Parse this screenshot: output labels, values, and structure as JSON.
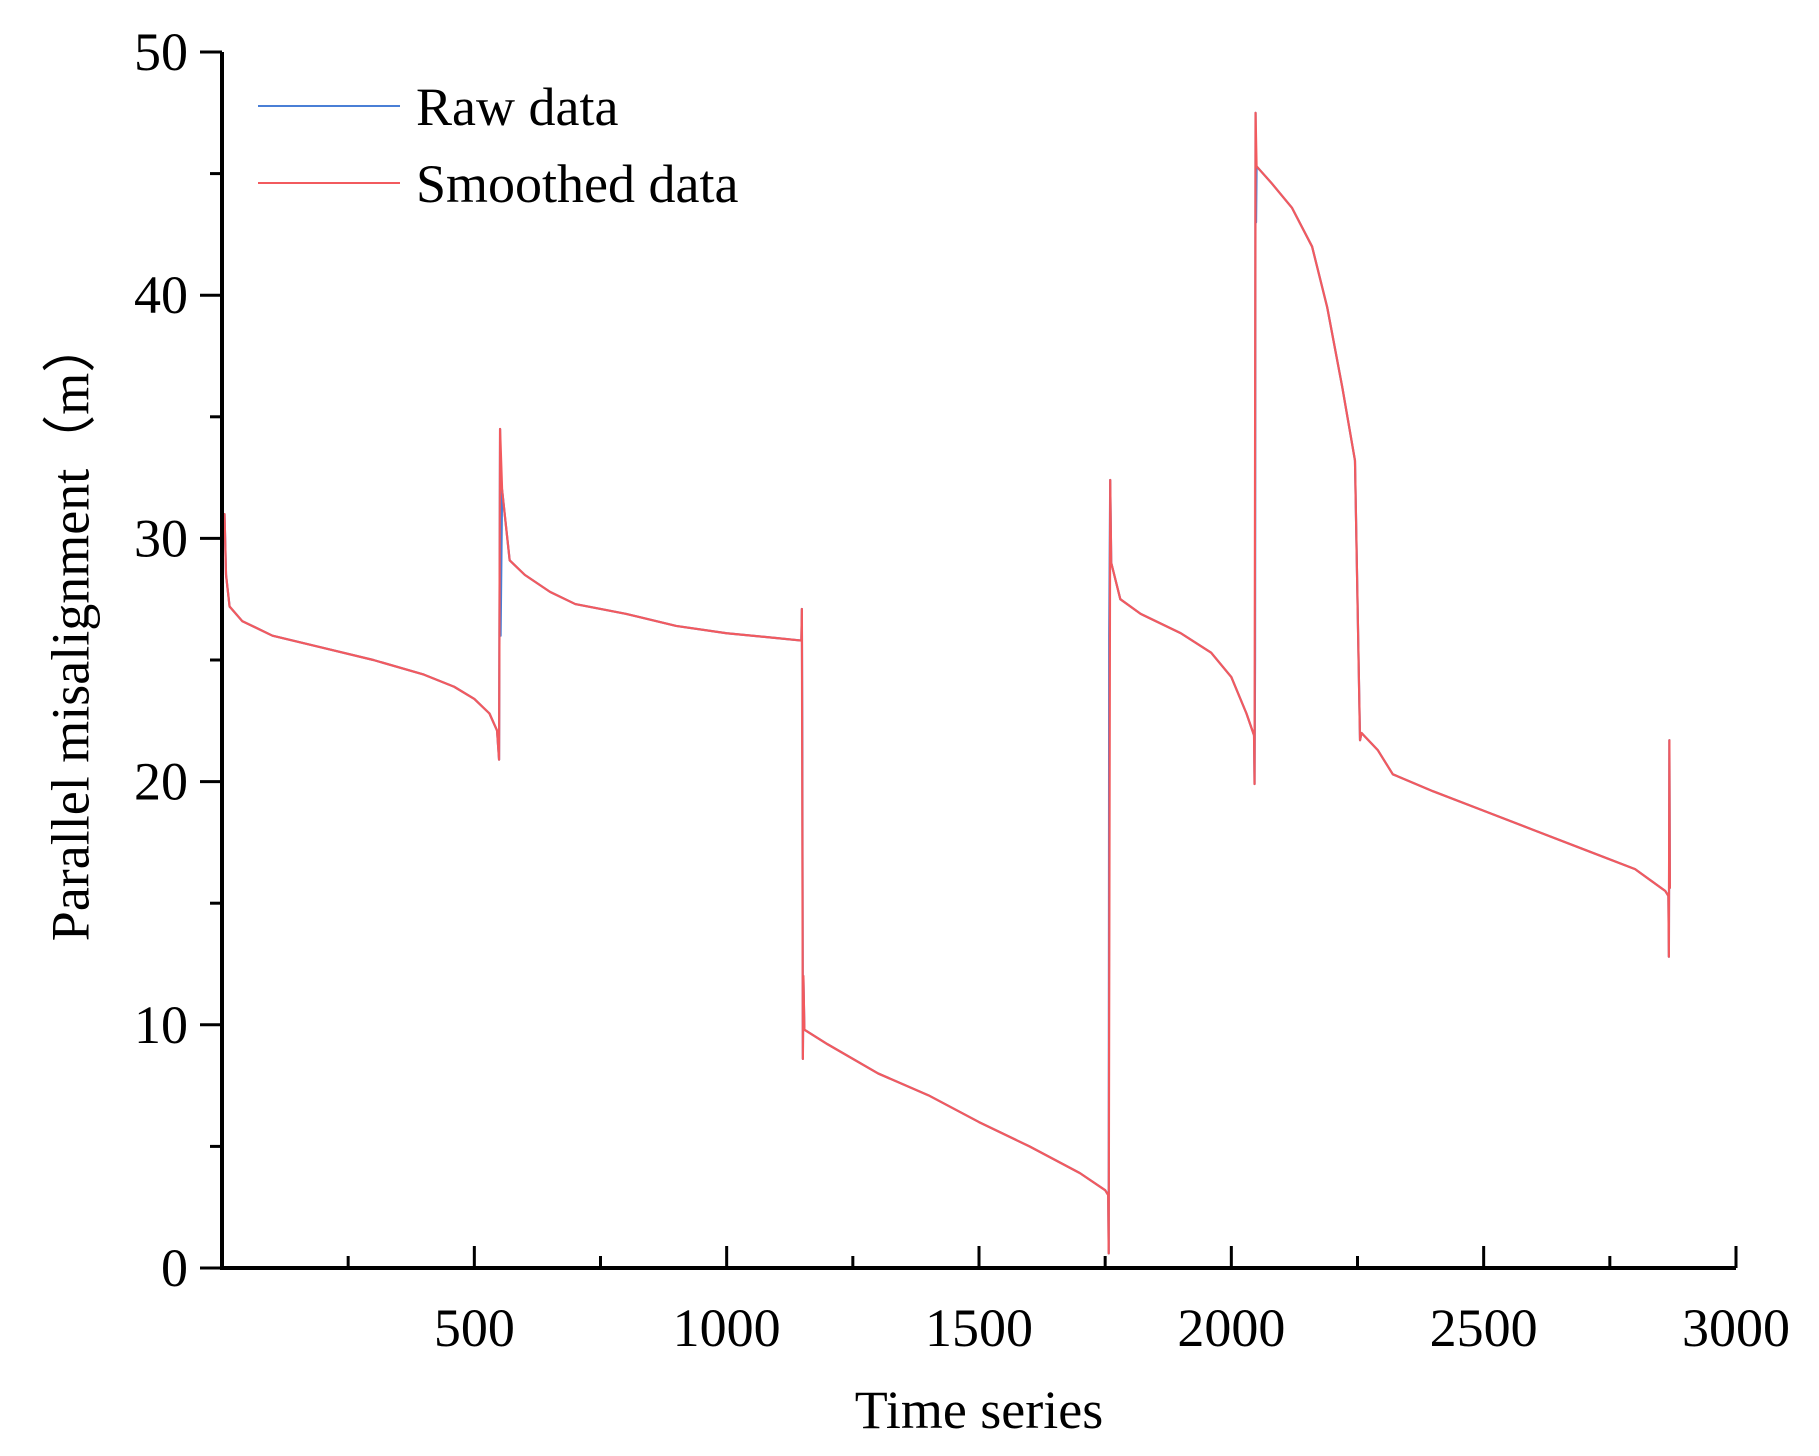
{
  "chart_data": {
    "type": "line",
    "title": "",
    "xlabel": "Time series",
    "ylabel": "Parallel misalignment（m）",
    "xlim": [
      0,
      3000
    ],
    "ylim": [
      0,
      50
    ],
    "x_ticks": [
      500,
      1000,
      1500,
      2000,
      2500,
      3000
    ],
    "x_tick_labels": [
      "500",
      "1000",
      "1500",
      "2000",
      "2500",
      "3000"
    ],
    "x_minor_ticks": [
      250,
      750,
      1250,
      1750,
      2250,
      2750
    ],
    "y_ticks": [
      0,
      10,
      20,
      30,
      40,
      50
    ],
    "y_tick_labels": [
      "0",
      "10",
      "20",
      "30",
      "40",
      "50"
    ],
    "y_minor_ticks": [
      5,
      15,
      25,
      35,
      45
    ],
    "grid": false,
    "legend_position": "top-left",
    "series": [
      {
        "name": "Raw data",
        "color": "#4a7fd6",
        "points": [
          [
            0,
            30.5
          ],
          [
            5,
            31.0
          ],
          [
            8,
            28.5
          ],
          [
            15,
            27.2
          ],
          [
            40,
            26.6
          ],
          [
            100,
            26.0
          ],
          [
            200,
            25.5
          ],
          [
            300,
            25.0
          ],
          [
            400,
            24.4
          ],
          [
            460,
            23.9
          ],
          [
            500,
            23.4
          ],
          [
            530,
            22.8
          ],
          [
            545,
            22.1
          ],
          [
            549,
            20.9
          ],
          [
            551,
            34.5
          ],
          [
            552,
            26.0
          ],
          [
            555,
            32.0
          ],
          [
            570,
            29.1
          ],
          [
            600,
            28.5
          ],
          [
            650,
            27.8
          ],
          [
            700,
            27.3
          ],
          [
            800,
            26.9
          ],
          [
            900,
            26.4
          ],
          [
            1000,
            26.1
          ],
          [
            1100,
            25.9
          ],
          [
            1148,
            25.8
          ],
          [
            1149,
            27.1
          ],
          [
            1150,
            21.0
          ],
          [
            1151,
            8.6
          ],
          [
            1152,
            12.0
          ],
          [
            1154,
            9.8
          ],
          [
            1200,
            9.2
          ],
          [
            1300,
            8.0
          ],
          [
            1400,
            7.1
          ],
          [
            1500,
            6.0
          ],
          [
            1600,
            5.0
          ],
          [
            1700,
            3.9
          ],
          [
            1750,
            3.2
          ],
          [
            1756,
            3.0
          ],
          [
            1757,
            0.6
          ],
          [
            1758,
            26.0
          ],
          [
            1760,
            32.4
          ],
          [
            1762,
            29.0
          ],
          [
            1780,
            27.5
          ],
          [
            1820,
            26.9
          ],
          [
            1900,
            26.1
          ],
          [
            1960,
            25.3
          ],
          [
            2000,
            24.3
          ],
          [
            2030,
            22.8
          ],
          [
            2045,
            21.9
          ],
          [
            2046,
            19.9
          ],
          [
            2047,
            25.0
          ],
          [
            2048,
            47.5
          ],
          [
            2049,
            43.0
          ],
          [
            2050,
            45.3
          ],
          [
            2080,
            44.6
          ],
          [
            2120,
            43.6
          ],
          [
            2160,
            42.0
          ],
          [
            2190,
            39.5
          ],
          [
            2220,
            36.2
          ],
          [
            2245,
            33.2
          ],
          [
            2255,
            21.7
          ],
          [
            2258,
            22.0
          ],
          [
            2290,
            21.3
          ],
          [
            2320,
            20.3
          ],
          [
            2400,
            19.6
          ],
          [
            2500,
            18.8
          ],
          [
            2600,
            18.0
          ],
          [
            2700,
            17.2
          ],
          [
            2800,
            16.4
          ],
          [
            2860,
            15.5
          ],
          [
            2866,
            15.3
          ],
          [
            2867,
            12.8
          ],
          [
            2868,
            21.7
          ],
          [
            2869,
            15.6
          ]
        ]
      },
      {
        "name": "Smoothed data",
        "color": "#f25a5e",
        "points": [
          [
            0,
            30.5
          ],
          [
            5,
            31.0
          ],
          [
            8,
            28.5
          ],
          [
            15,
            27.2
          ],
          [
            40,
            26.6
          ],
          [
            100,
            26.0
          ],
          [
            200,
            25.5
          ],
          [
            300,
            25.0
          ],
          [
            400,
            24.4
          ],
          [
            460,
            23.9
          ],
          [
            500,
            23.4
          ],
          [
            530,
            22.8
          ],
          [
            545,
            22.1
          ],
          [
            549,
            20.9
          ],
          [
            551,
            34.5
          ],
          [
            555,
            32.0
          ],
          [
            570,
            29.1
          ],
          [
            600,
            28.5
          ],
          [
            650,
            27.8
          ],
          [
            700,
            27.3
          ],
          [
            800,
            26.9
          ],
          [
            900,
            26.4
          ],
          [
            1000,
            26.1
          ],
          [
            1100,
            25.9
          ],
          [
            1148,
            25.8
          ],
          [
            1149,
            27.1
          ],
          [
            1151,
            8.6
          ],
          [
            1152,
            12.0
          ],
          [
            1154,
            9.8
          ],
          [
            1200,
            9.2
          ],
          [
            1300,
            8.0
          ],
          [
            1400,
            7.1
          ],
          [
            1500,
            6.0
          ],
          [
            1600,
            5.0
          ],
          [
            1700,
            3.9
          ],
          [
            1750,
            3.2
          ],
          [
            1756,
            3.0
          ],
          [
            1757,
            0.6
          ],
          [
            1760,
            32.4
          ],
          [
            1762,
            29.0
          ],
          [
            1780,
            27.5
          ],
          [
            1820,
            26.9
          ],
          [
            1900,
            26.1
          ],
          [
            1960,
            25.3
          ],
          [
            2000,
            24.3
          ],
          [
            2030,
            22.8
          ],
          [
            2045,
            21.9
          ],
          [
            2046,
            19.9
          ],
          [
            2048,
            47.5
          ],
          [
            2050,
            45.3
          ],
          [
            2080,
            44.6
          ],
          [
            2120,
            43.6
          ],
          [
            2160,
            42.0
          ],
          [
            2190,
            39.5
          ],
          [
            2220,
            36.2
          ],
          [
            2245,
            33.2
          ],
          [
            2255,
            21.7
          ],
          [
            2258,
            22.0
          ],
          [
            2290,
            21.3
          ],
          [
            2320,
            20.3
          ],
          [
            2400,
            19.6
          ],
          [
            2500,
            18.8
          ],
          [
            2600,
            18.0
          ],
          [
            2700,
            17.2
          ],
          [
            2800,
            16.4
          ],
          [
            2860,
            15.5
          ],
          [
            2866,
            15.3
          ],
          [
            2867,
            12.8
          ],
          [
            2868,
            21.7
          ],
          [
            2869,
            15.6
          ]
        ]
      }
    ]
  }
}
